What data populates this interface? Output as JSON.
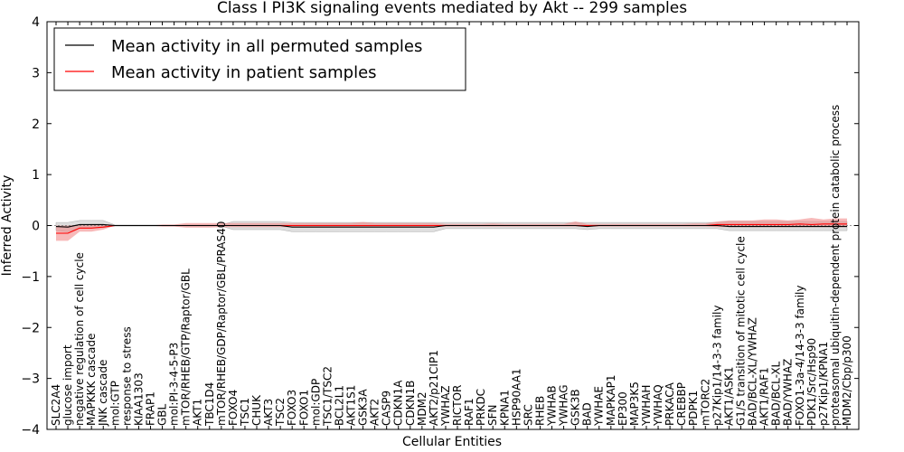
{
  "chart_data": {
    "type": "line",
    "title": "Class I PI3K signaling events mediated by Akt -- 299 samples",
    "xlabel": "Cellular Entities",
    "ylabel": "Inferred Activity",
    "ylim": [
      -4,
      4
    ],
    "yticks": [
      4,
      3,
      2,
      1,
      0,
      -1,
      -2,
      -3,
      -4
    ],
    "ytick_labels": [
      "4",
      "3",
      "2",
      "1",
      "0",
      "−1",
      "−2",
      "−3",
      "−4"
    ],
    "grid": false,
    "legend_position": "top-left",
    "categories": [
      "SLC2A4",
      "glucose import",
      "negative regulation of cell cycle",
      "MAPKKK cascade",
      "JNK cascade",
      "mol:GTP",
      "response to stress",
      "KIAA1303",
      "FRAP1",
      "GBL",
      "mol:PI-3-4-5-P3",
      "mTOR/RHEB/GTP/Raptor/GBL",
      "AKT1",
      "TBC1D4",
      "mTOR/RHEB/GDP/Raptor/GBL/PRAS40",
      "FOXO4",
      "TSC1",
      "CHUK",
      "AKT3",
      "TSC2",
      "FOXO3",
      "FOXO1",
      "mol:GDP",
      "TSC1/TSC2",
      "BCL2L1",
      "AKT1S1",
      "GSK3A",
      "AKT2",
      "CASP9",
      "CDKN1A",
      "CDKN1B",
      "MDM2",
      "AKT2/p21CIP1",
      "YWHAZ",
      "RICTOR",
      "RAF1",
      "PRKDC",
      "SFN",
      "KPNA1",
      "HSP90AA1",
      "SRC",
      "RHEB",
      "YWHAB",
      "YWHAG",
      "GSK3B",
      "BAD",
      "YWHAE",
      "MAPKAP1",
      "EP300",
      "MAP3K5",
      "YWHAH",
      "YWHAQ",
      "PRKACA",
      "CREBBP",
      "PDPK1",
      "mTORC2",
      "p27Kip1/14-3-3 family",
      "AKT1/ASK1",
      "G1/S transition of mitotic cell cycle",
      "BAD/BCL-XL/YWHAZ",
      "AKT1/RAF1",
      "BAD/BCL-XL",
      "BAD/YWHAZ",
      "FOXO1-3a-4/14-3-3 family",
      "PDK1/Src/Hsp90",
      "p27Kip1/KPNA1",
      "proteasomal ubiquitin-dependent protein catabolic process",
      "MDM2/Cbp/p300"
    ],
    "series": [
      {
        "name": "Mean activity in all permuted samples",
        "color": "#000000",
        "values": [
          -0.02,
          -0.03,
          0.02,
          0.02,
          0.02,
          0.0,
          0.0,
          0.0,
          0.0,
          0.0,
          0.0,
          0.0,
          0.0,
          0.0,
          0.0,
          0.0,
          0.0,
          0.0,
          0.0,
          0.0,
          -0.03,
          -0.03,
          -0.03,
          -0.03,
          -0.03,
          -0.03,
          -0.03,
          -0.03,
          -0.03,
          -0.03,
          -0.03,
          -0.03,
          -0.03,
          0.0,
          0.0,
          0.0,
          0.0,
          0.0,
          0.0,
          0.0,
          0.0,
          0.0,
          0.0,
          0.0,
          0.0,
          -0.02,
          0.0,
          0.0,
          0.0,
          0.0,
          0.0,
          0.0,
          0.0,
          0.0,
          0.0,
          0.0,
          0.0,
          -0.02,
          -0.02,
          -0.02,
          -0.02,
          -0.02,
          -0.02,
          -0.02,
          -0.02,
          -0.02,
          -0.02,
          -0.02
        ],
        "band_lower": [
          -0.1,
          -0.12,
          -0.05,
          -0.05,
          -0.04,
          -0.01,
          -0.01,
          -0.01,
          -0.01,
          -0.01,
          -0.01,
          -0.01,
          -0.01,
          -0.01,
          -0.01,
          -0.08,
          -0.08,
          -0.08,
          -0.08,
          -0.08,
          -0.12,
          -0.12,
          -0.12,
          -0.12,
          -0.12,
          -0.12,
          -0.12,
          -0.12,
          -0.12,
          -0.12,
          -0.12,
          -0.12,
          -0.12,
          -0.06,
          -0.06,
          -0.06,
          -0.06,
          -0.06,
          -0.06,
          -0.06,
          -0.06,
          -0.06,
          -0.06,
          -0.06,
          -0.06,
          -0.08,
          -0.06,
          -0.06,
          -0.06,
          -0.06,
          -0.06,
          -0.06,
          -0.06,
          -0.06,
          -0.06,
          -0.06,
          -0.06,
          -0.1,
          -0.1,
          -0.1,
          -0.1,
          -0.1,
          -0.1,
          -0.1,
          -0.1,
          -0.1,
          -0.1,
          -0.1
        ],
        "band_upper": [
          0.06,
          0.06,
          0.1,
          0.1,
          0.1,
          0.01,
          0.01,
          0.01,
          0.01,
          0.01,
          0.01,
          0.01,
          0.01,
          0.01,
          0.01,
          0.08,
          0.08,
          0.08,
          0.08,
          0.08,
          0.06,
          0.06,
          0.06,
          0.06,
          0.06,
          0.06,
          0.06,
          0.06,
          0.06,
          0.06,
          0.06,
          0.06,
          0.06,
          0.06,
          0.06,
          0.06,
          0.06,
          0.06,
          0.06,
          0.06,
          0.06,
          0.06,
          0.06,
          0.06,
          0.06,
          0.06,
          0.06,
          0.06,
          0.06,
          0.06,
          0.06,
          0.06,
          0.06,
          0.06,
          0.06,
          0.06,
          0.06,
          0.08,
          0.08,
          0.08,
          0.08,
          0.08,
          0.08,
          0.08,
          0.08,
          0.08,
          0.08,
          0.08
        ]
      },
      {
        "name": "Mean activity in patient samples",
        "color": "#ff0000",
        "values": [
          -0.15,
          -0.15,
          -0.05,
          -0.05,
          -0.03,
          0.0,
          0.0,
          0.0,
          0.0,
          0.0,
          0.0,
          0.0,
          0.0,
          0.0,
          0.0,
          0.0,
          0.0,
          0.0,
          0.0,
          0.0,
          0.0,
          0.0,
          0.0,
          0.0,
          0.0,
          0.0,
          0.0,
          0.0,
          0.0,
          0.0,
          0.0,
          0.0,
          0.0,
          0.0,
          0.0,
          0.0,
          0.0,
          0.0,
          0.0,
          0.0,
          0.0,
          0.0,
          0.0,
          0.0,
          0.0,
          0.0,
          0.0,
          0.0,
          0.0,
          0.0,
          0.0,
          0.0,
          0.0,
          0.0,
          0.0,
          0.0,
          0.02,
          0.02,
          0.02,
          0.02,
          0.02,
          0.02,
          0.02,
          0.03,
          0.02,
          0.03,
          0.03,
          0.03
        ],
        "band_lower": [
          -0.3,
          -0.3,
          -0.12,
          -0.12,
          -0.08,
          0.0,
          0.0,
          0.0,
          0.0,
          -0.02,
          -0.02,
          -0.04,
          -0.04,
          -0.04,
          -0.03,
          -0.03,
          -0.03,
          -0.03,
          -0.03,
          -0.03,
          -0.03,
          -0.03,
          -0.03,
          -0.03,
          -0.03,
          -0.03,
          -0.03,
          -0.03,
          -0.03,
          -0.03,
          -0.03,
          -0.03,
          -0.03,
          -0.02,
          -0.02,
          -0.02,
          -0.02,
          -0.02,
          -0.02,
          -0.02,
          -0.02,
          -0.02,
          -0.02,
          -0.02,
          -0.02,
          -0.02,
          -0.02,
          -0.02,
          -0.02,
          -0.02,
          -0.02,
          -0.02,
          -0.02,
          -0.02,
          -0.02,
          -0.02,
          -0.03,
          -0.03,
          -0.03,
          -0.03,
          -0.03,
          -0.03,
          -0.03,
          -0.03,
          -0.03,
          -0.03,
          -0.03,
          -0.03
        ],
        "band_upper": [
          0.0,
          0.0,
          0.02,
          0.02,
          0.02,
          0.0,
          0.0,
          0.0,
          0.0,
          0.02,
          0.02,
          0.05,
          0.05,
          0.05,
          0.05,
          0.05,
          0.05,
          0.05,
          0.05,
          0.05,
          0.05,
          0.05,
          0.05,
          0.05,
          0.05,
          0.05,
          0.07,
          0.05,
          0.05,
          0.05,
          0.05,
          0.05,
          0.05,
          0.03,
          0.03,
          0.03,
          0.03,
          0.04,
          0.03,
          0.03,
          0.03,
          0.03,
          0.03,
          0.03,
          0.08,
          0.03,
          0.03,
          0.03,
          0.03,
          0.03,
          0.03,
          0.03,
          0.03,
          0.03,
          0.04,
          0.04,
          0.08,
          0.1,
          0.1,
          0.1,
          0.12,
          0.12,
          0.1,
          0.12,
          0.15,
          0.12,
          0.14,
          0.14
        ]
      }
    ],
    "colors": {
      "permuted_band": "#c8c8c8",
      "patient_band": "#f08080",
      "axis": "#000000"
    }
  }
}
